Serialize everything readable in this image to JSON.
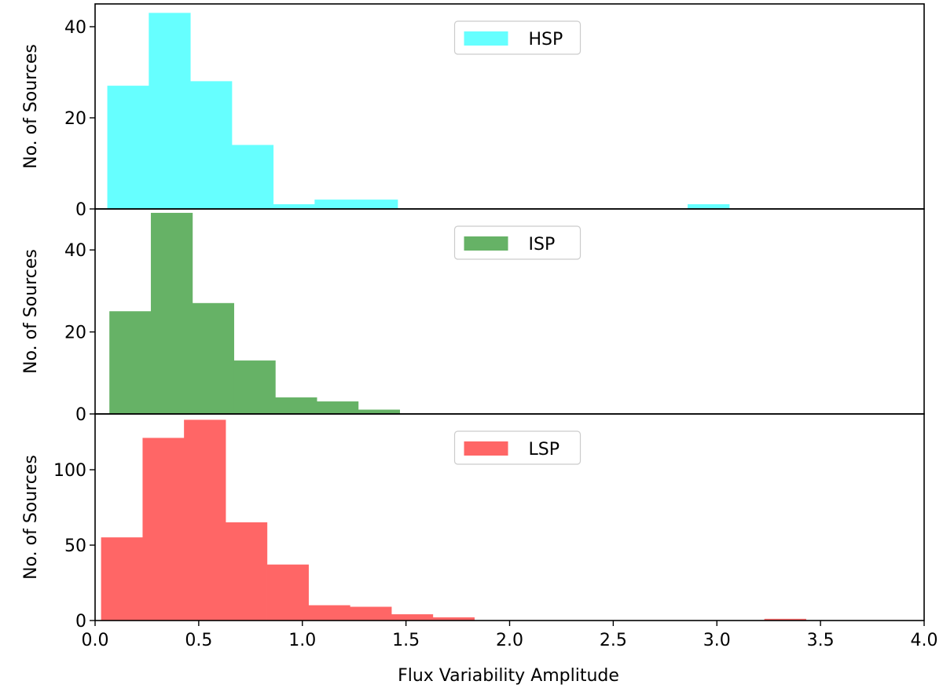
{
  "chart_data": {
    "type": "bar",
    "layout": "stacked-panels-shared-x",
    "xlabel": "Flux Variability Amplitude",
    "xlim": [
      0,
      4.0
    ],
    "xticks": [
      "0.0",
      "0.5",
      "1.0",
      "1.5",
      "2.0",
      "2.5",
      "3.0",
      "3.5",
      "4.0"
    ],
    "panels": [
      {
        "name": "HSP",
        "color": "#66ffff",
        "ylabel": "No. of Sources",
        "ylim": [
          0,
          45
        ],
        "yticks": [
          "0",
          "20",
          "40"
        ],
        "legend_position": "top-center",
        "bins": [
          {
            "x0": 0.06,
            "x1": 0.26,
            "count": 27
          },
          {
            "x0": 0.26,
            "x1": 0.46,
            "count": 43
          },
          {
            "x0": 0.46,
            "x1": 0.66,
            "count": 28
          },
          {
            "x0": 0.66,
            "x1": 0.86,
            "count": 14
          },
          {
            "x0": 0.86,
            "x1": 1.06,
            "count": 1
          },
          {
            "x0": 1.06,
            "x1": 1.26,
            "count": 2
          },
          {
            "x0": 1.26,
            "x1": 1.46,
            "count": 2
          },
          {
            "x0": 2.86,
            "x1": 3.06,
            "count": 1
          }
        ]
      },
      {
        "name": "ISP",
        "color": "#66b266",
        "ylabel": "No. of Sources",
        "ylim": [
          0,
          50
        ],
        "yticks": [
          "0",
          "20",
          "40"
        ],
        "legend_position": "top-center",
        "bins": [
          {
            "x0": 0.07,
            "x1": 0.27,
            "count": 25
          },
          {
            "x0": 0.27,
            "x1": 0.47,
            "count": 49
          },
          {
            "x0": 0.47,
            "x1": 0.67,
            "count": 27
          },
          {
            "x0": 0.67,
            "x1": 0.87,
            "count": 13
          },
          {
            "x0": 0.87,
            "x1": 1.07,
            "count": 4
          },
          {
            "x0": 1.07,
            "x1": 1.27,
            "count": 3
          },
          {
            "x0": 1.27,
            "x1": 1.47,
            "count": 1
          }
        ]
      },
      {
        "name": "LSP",
        "color": "#ff6666",
        "ylabel": "No. of Sources",
        "ylim": [
          0,
          137
        ],
        "yticks": [
          "0",
          "50",
          "100"
        ],
        "legend_position": "top-center",
        "bins": [
          {
            "x0": 0.03,
            "x1": 0.23,
            "count": 55
          },
          {
            "x0": 0.23,
            "x1": 0.43,
            "count": 121
          },
          {
            "x0": 0.43,
            "x1": 0.63,
            "count": 133
          },
          {
            "x0": 0.63,
            "x1": 0.83,
            "count": 65
          },
          {
            "x0": 0.83,
            "x1": 1.03,
            "count": 37
          },
          {
            "x0": 1.03,
            "x1": 1.23,
            "count": 10
          },
          {
            "x0": 1.23,
            "x1": 1.43,
            "count": 9
          },
          {
            "x0": 1.43,
            "x1": 1.63,
            "count": 4
          },
          {
            "x0": 1.63,
            "x1": 1.83,
            "count": 2
          },
          {
            "x0": 3.23,
            "x1": 3.43,
            "count": 1
          }
        ]
      }
    ]
  }
}
